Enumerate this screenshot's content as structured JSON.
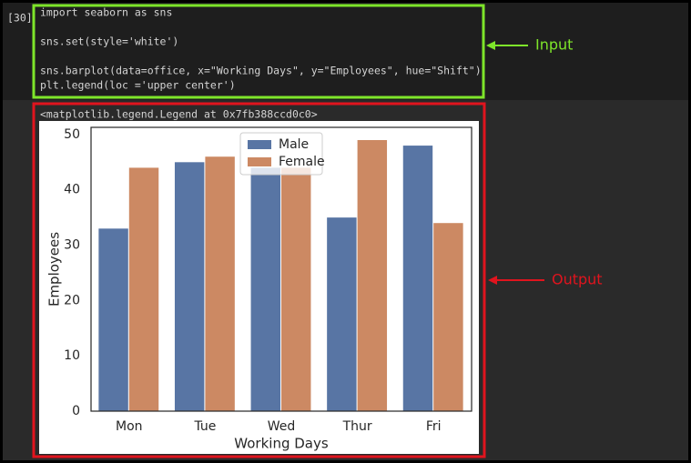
{
  "cell": {
    "prompt": "[30]",
    "code": [
      "import seaborn as sns",
      "sns.set(style='white')",
      "sns.barplot(data=office, x=\"Working Days\", y=\"Employees\", hue=\"Shift\")",
      "plt.legend(loc ='upper center')"
    ],
    "output_text": "<matplotlib.legend.Legend at 0x7fb388ccd0c0>"
  },
  "annotations": {
    "input": "Input",
    "output": "Output"
  },
  "chart_data": {
    "type": "bar",
    "x_label": "Working Days",
    "y_label": "Employees",
    "categories": [
      "Mon",
      "Tue",
      "Wed",
      "Thur",
      "Fri"
    ],
    "series": [
      {
        "name": "Male",
        "color": "#5875a4",
        "values": [
          33,
          45,
          44,
          35,
          48
        ]
      },
      {
        "name": "Female",
        "color": "#cc8963",
        "values": [
          44,
          46,
          44,
          49,
          34
        ]
      }
    ],
    "ylim": [
      0,
      51.3
    ],
    "yticks": [
      0,
      10,
      20,
      30,
      40,
      50
    ],
    "grid": false,
    "legend": "upper center"
  }
}
